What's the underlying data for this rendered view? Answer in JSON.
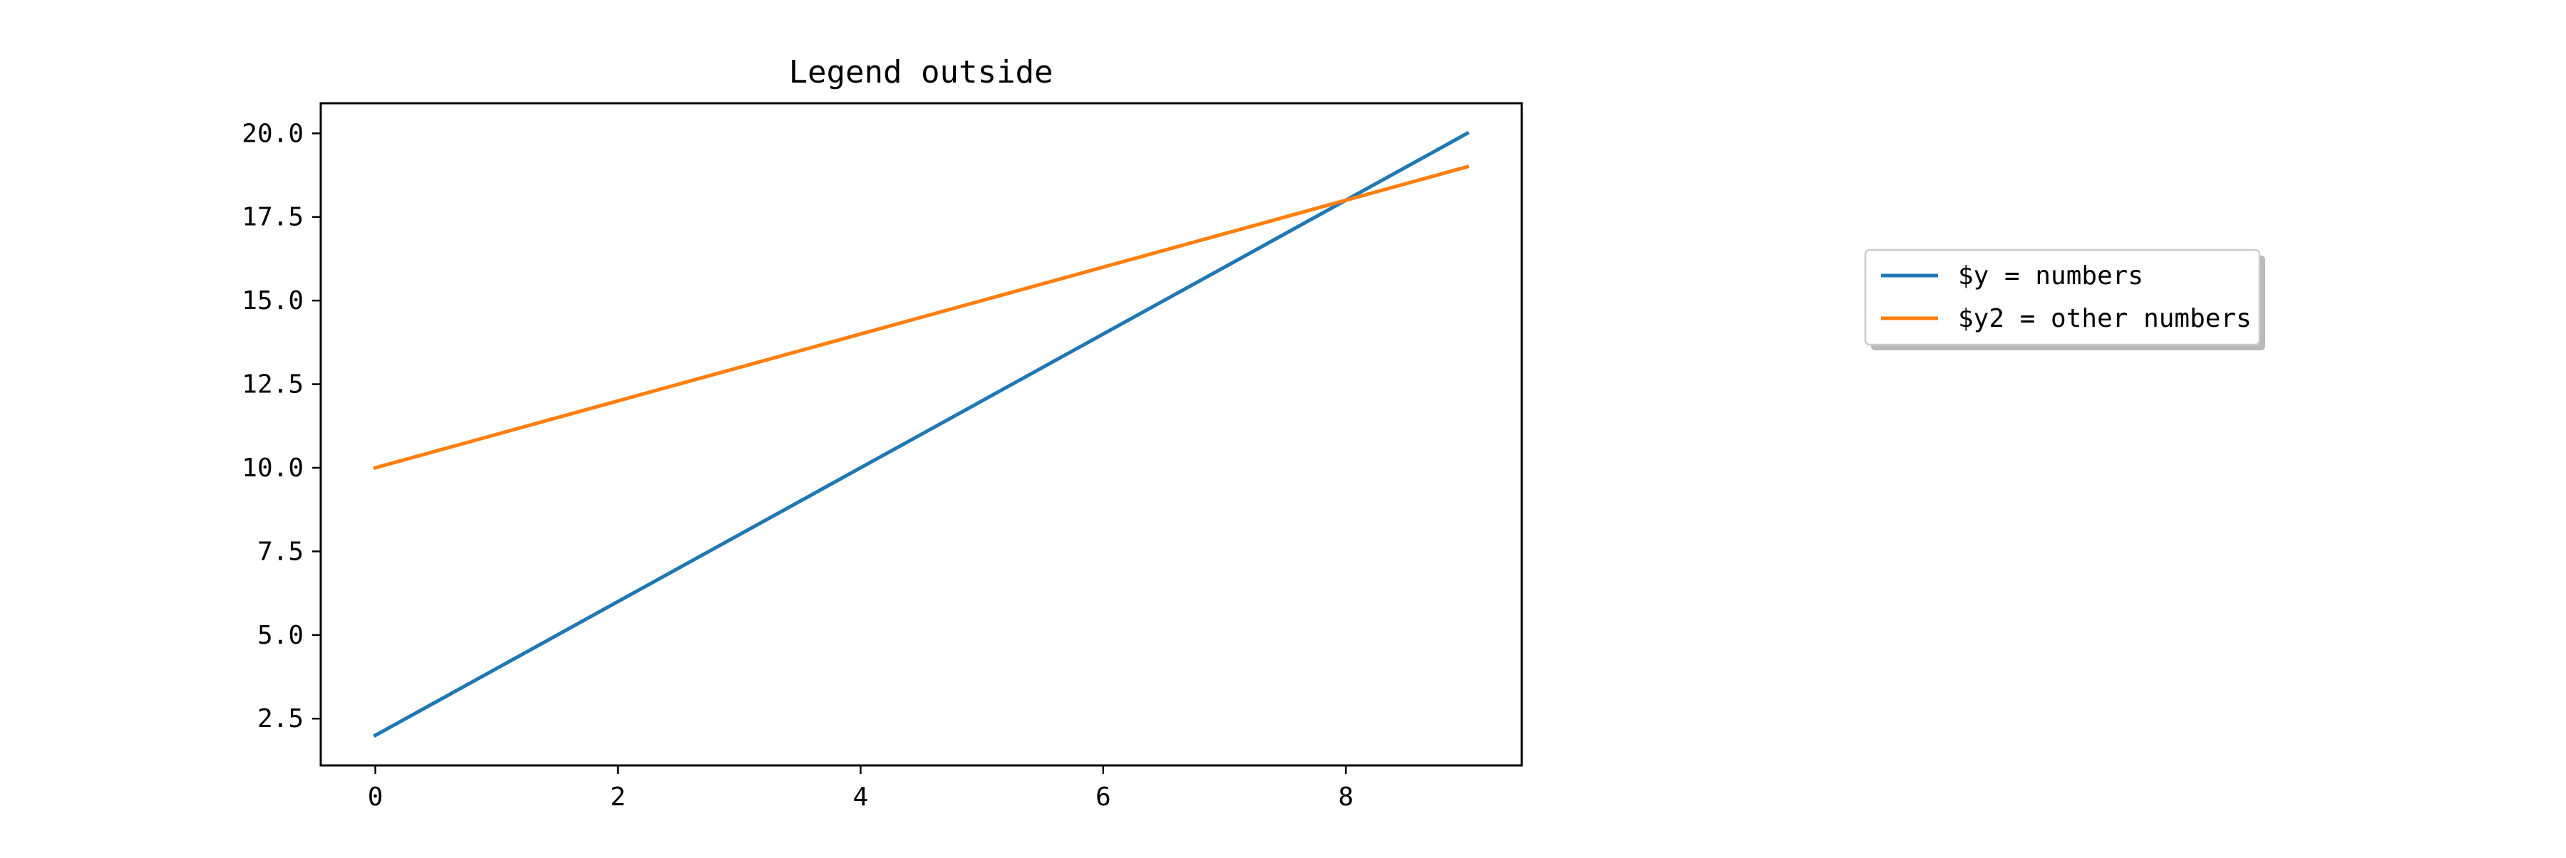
{
  "chart_data": {
    "type": "line",
    "title": "Legend outside",
    "xlabel": "",
    "ylabel": "",
    "x": [
      0,
      1,
      2,
      3,
      4,
      5,
      6,
      7,
      8,
      9
    ],
    "series": [
      {
        "name": "$y = numbers",
        "color": "#1f77b4",
        "values": [
          2,
          4,
          6,
          8,
          10,
          12,
          14,
          16,
          18,
          20
        ]
      },
      {
        "name": "$y2 = other numbers",
        "color": "#ff7f0e",
        "values": [
          10,
          11,
          12,
          13,
          14,
          15,
          16,
          17,
          18,
          19
        ]
      }
    ],
    "xlim": [
      -0.45,
      9.45
    ],
    "ylim": [
      1.1,
      20.9
    ],
    "xticks": [
      0,
      2,
      4,
      6,
      8
    ],
    "xtick_labels": [
      "0",
      "2",
      "4",
      "6",
      "8"
    ],
    "yticks": [
      2.5,
      5.0,
      7.5,
      10.0,
      12.5,
      15.0,
      17.5,
      20.0
    ],
    "ytick_labels": [
      "2.5",
      "5.0",
      "7.5",
      "10.0",
      "12.5",
      "15.0",
      "17.5",
      "20.0"
    ],
    "grid": false,
    "legend_position": "outside-right",
    "legend_shadow": true
  }
}
